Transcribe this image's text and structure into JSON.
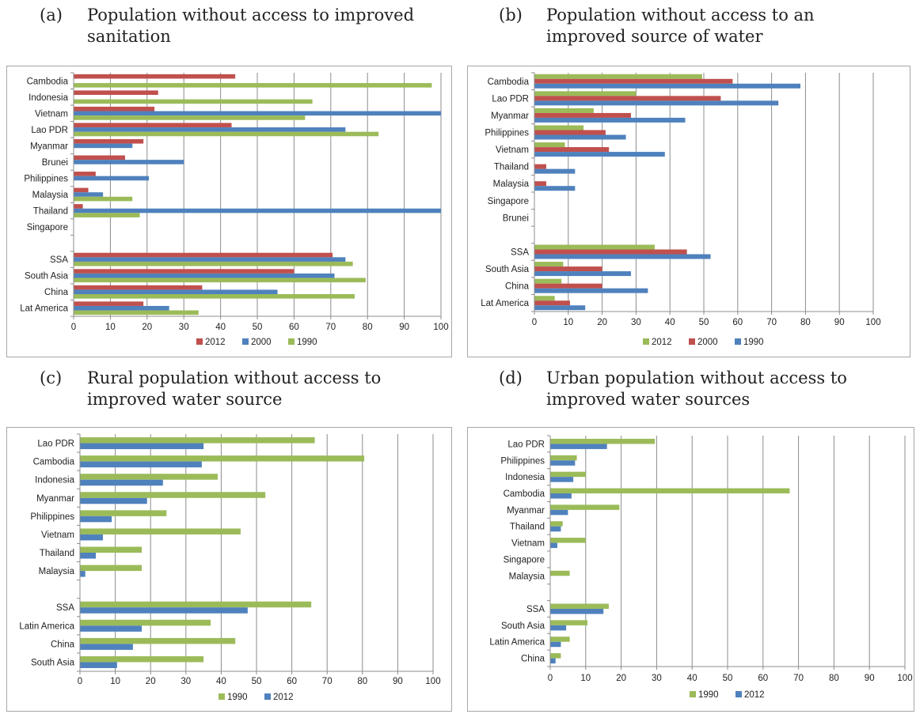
{
  "chart_data": [
    {
      "type": "bar",
      "orientation": "horizontal",
      "title_label": "(a)",
      "title_line1": "Population without access to improved",
      "title_line2": "sanitation",
      "categories": [
        "Cambodia",
        "Indonesia",
        "Vietnam",
        "Lao PDR",
        "Myanmar",
        "Brunei",
        "Philippines",
        "Malaysia",
        "Thailand",
        "Singapore",
        "",
        "SSA",
        "South Asia",
        "China",
        "Lat America"
      ],
      "series": [
        {
          "name": "2012",
          "color": "#c0504d",
          "values": [
            44,
            23,
            22,
            43,
            19,
            14,
            6,
            4,
            2.5,
            null,
            null,
            70.5,
            60,
            35,
            19
          ]
        },
        {
          "name": "2000",
          "color": "#4f81bd",
          "values": [
            null,
            null,
            100,
            74,
            16,
            30,
            20.5,
            8,
            100,
            null,
            null,
            74,
            71,
            55.5,
            26
          ]
        },
        {
          "name": "1990",
          "color": "#9bbb59",
          "values": [
            97.5,
            65,
            63,
            83,
            null,
            null,
            null,
            16,
            18,
            null,
            null,
            76,
            79.5,
            76.5,
            34
          ]
        }
      ],
      "xlim": [
        0,
        100
      ],
      "xticks": [
        0,
        10,
        20,
        30,
        40,
        50,
        60,
        70,
        80,
        90,
        100
      ],
      "grid": true,
      "legend": "bottom"
    },
    {
      "type": "bar",
      "orientation": "horizontal",
      "title_label": "(b)",
      "title_line1": "Population without access to an",
      "title_line2": "improved source of water",
      "categories": [
        "Cambodia",
        "Lao PDR",
        "Myanmar",
        "Philippines",
        "Vietnam",
        "Thailand",
        "Malaysia",
        "Singapore",
        "Brunei",
        "",
        "SSA",
        "South Asia",
        "China",
        "Lat America"
      ],
      "series": [
        {
          "name": "2012",
          "color": "#9bbb59",
          "values": [
            49.5,
            30,
            17.5,
            14.5,
            9,
            null,
            null,
            null,
            null,
            null,
            35.5,
            8.5,
            8,
            6
          ]
        },
        {
          "name": "2000",
          "color": "#c0504d",
          "values": [
            58.5,
            55,
            28.5,
            21,
            22,
            3.5,
            3.5,
            null,
            null,
            null,
            45,
            20,
            20,
            10.5
          ]
        },
        {
          "name": "1990",
          "color": "#4f81bd",
          "values": [
            78.5,
            72,
            44.5,
            27,
            38.5,
            12,
            12,
            null,
            null,
            null,
            52,
            28.5,
            33.5,
            15
          ]
        }
      ],
      "xlim": [
        0,
        100
      ],
      "xticks": [
        0,
        10,
        20,
        30,
        40,
        50,
        60,
        70,
        80,
        90,
        100
      ],
      "grid": true,
      "legend": "bottom"
    },
    {
      "type": "bar",
      "orientation": "horizontal",
      "title_label": "(c)",
      "title_line1": "Rural population without access to",
      "title_line2": "improved water source",
      "categories": [
        "Lao PDR",
        "Cambodia",
        "Indonesia",
        "Myanmar",
        "Philippines",
        "Vietnam",
        "Thailand",
        "Malaysia",
        "",
        "SSA",
        "Latin America",
        "China",
        "South Asia"
      ],
      "series": [
        {
          "name": "1990",
          "color": "#9bbb59",
          "values": [
            66.5,
            80.5,
            39,
            52.5,
            24.5,
            45.5,
            17.5,
            17.5,
            null,
            65.5,
            37,
            44,
            35
          ]
        },
        {
          "name": "2012",
          "color": "#4f81bd",
          "values": [
            35,
            34.5,
            23.5,
            19,
            9,
            6.5,
            4.5,
            1.5,
            null,
            47.5,
            17.5,
            15,
            10.5
          ]
        }
      ],
      "xlim": [
        0,
        100
      ],
      "xticks": [
        0,
        10,
        20,
        30,
        40,
        50,
        60,
        70,
        80,
        90,
        100
      ],
      "grid": true,
      "legend": "bottom"
    },
    {
      "type": "bar",
      "orientation": "horizontal",
      "title_label": "(d)",
      "title_line1": "Urban population without access to",
      "title_line2": "improved water sources",
      "categories": [
        "Lao PDR",
        "Philippines",
        "Indonesia",
        "Cambodia",
        "Myanmar",
        "Thailand",
        "Vietnam",
        "Singapore",
        "Malaysia",
        "",
        "SSA",
        "South Asia",
        "Latin America",
        "China"
      ],
      "series": [
        {
          "name": "1990",
          "color": "#9bbb59",
          "values": [
            29.5,
            7.5,
            10,
            67.5,
            19.5,
            3.5,
            10,
            null,
            5.5,
            null,
            16.5,
            10.5,
            5.5,
            3
          ]
        },
        {
          "name": "2012",
          "color": "#4f81bd",
          "values": [
            16,
            7,
            6.5,
            6,
            5,
            3,
            2,
            null,
            null,
            null,
            15,
            4.5,
            3,
            1.5
          ]
        }
      ],
      "xlim": [
        0,
        100
      ],
      "xticks": [
        0,
        10,
        20,
        30,
        40,
        50,
        60,
        70,
        80,
        90,
        100
      ],
      "grid": true,
      "legend": "bottom"
    }
  ]
}
